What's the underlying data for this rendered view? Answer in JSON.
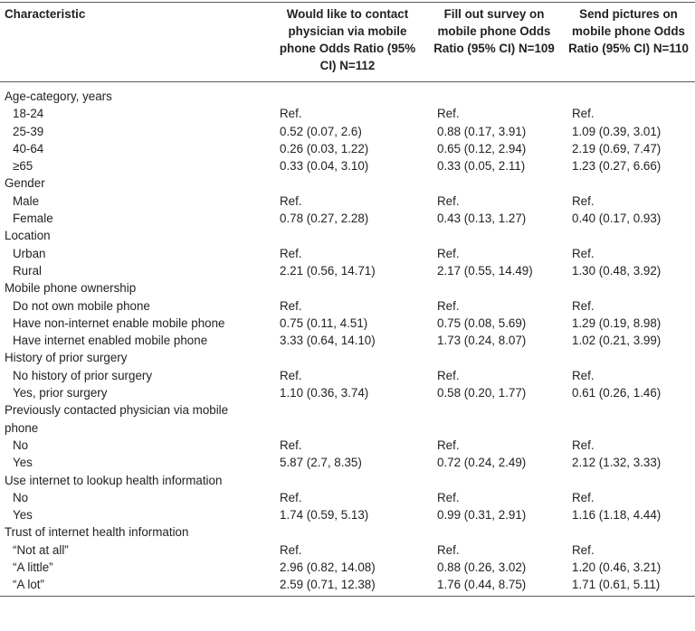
{
  "table": {
    "headers": [
      "Characteristic",
      "Would like to contact physician via mobile phone Odds Ratio (95% CI) N=112",
      "Fill out survey on mobile phone Odds Ratio (95% CI) N=109",
      "Send pictures on mobile phone Odds Ratio (95% CI) N=110"
    ],
    "rows": [
      {
        "type": "category",
        "label": "Age-category, years",
        "v1": "",
        "v2": "",
        "v3": ""
      },
      {
        "type": "item",
        "label": "18-24",
        "v1": "Ref.",
        "v2": "Ref.",
        "v3": "Ref."
      },
      {
        "type": "item",
        "label": " 25-39",
        "v1": "0.52 (0.07, 2.6)",
        "v2": "0.88 (0.17, 3.91)",
        "v3": "1.09 (0.39, 3.01)"
      },
      {
        "type": "item",
        "label": "40-64",
        "v1": "0.26 (0.03, 1.22)",
        "v2": "0.65 (0.12, 2.94)",
        "v3": "2.19 (0.69, 7.47)"
      },
      {
        "type": "item",
        "label": "≥65",
        "v1": "0.33 (0.04, 3.10)",
        "v2": "0.33 (0.05, 2.11)",
        "v3": "1.23 (0.27, 6.66)"
      },
      {
        "type": "category",
        "label": "Gender",
        "v1": "",
        "v2": "",
        "v3": ""
      },
      {
        "type": "item",
        "label": "Male",
        "v1": "Ref.",
        "v2": "Ref.",
        "v3": "Ref."
      },
      {
        "type": "item",
        "label": "Female",
        "v1": "0.78 (0.27, 2.28)",
        "v2": "0.43 (0.13, 1.27)",
        "v3": "0.40 (0.17, 0.93)"
      },
      {
        "type": "category",
        "label": "Location",
        "v1": "",
        "v2": "",
        "v3": ""
      },
      {
        "type": "item",
        "label": "Urban",
        "v1": "Ref.",
        "v2": "Ref.",
        "v3": "Ref."
      },
      {
        "type": "item",
        "label": "Rural",
        "v1": "2.21 (0.56, 14.71)",
        "v2": "2.17 (0.55, 14.49)",
        "v3": "1.30 (0.48, 3.92)"
      },
      {
        "type": "category",
        "label": "Mobile phone ownership",
        "v1": "",
        "v2": "",
        "v3": ""
      },
      {
        "type": "item",
        "label": "Do not own mobile phone",
        "v1": "Ref.",
        "v2": "Ref.",
        "v3": "Ref."
      },
      {
        "type": "item",
        "label": "Have non-internet enable mobile phone",
        "v1": "0.75 (0.11, 4.51)",
        "v2": "0.75 (0.08, 5.69)",
        "v3": "1.29 (0.19, 8.98)"
      },
      {
        "type": "item",
        "label": "Have internet enabled mobile phone",
        "v1": "3.33 (0.64, 14.10)",
        "v2": "1.73 (0.24, 8.07)",
        "v3": "1.02 (0.21, 3.99)"
      },
      {
        "type": "category",
        "label": "History of prior surgery",
        "v1": "",
        "v2": "",
        "v3": ""
      },
      {
        "type": "item",
        "label": "No history of prior surgery",
        "v1": "Ref.",
        "v2": "Ref.",
        "v3": "Ref."
      },
      {
        "type": "item",
        "label": "Yes, prior surgery",
        "v1": "1.10 (0.36, 3.74)",
        "v2": "0.58 (0.20, 1.77)",
        "v3": "0.61 (0.26, 1.46)"
      },
      {
        "type": "category",
        "label": "Previously contacted physician via mobile phone",
        "v1": "",
        "v2": "",
        "v3": ""
      },
      {
        "type": "item",
        "label": "No",
        "v1": "Ref.",
        "v2": "Ref.",
        "v3": "Ref."
      },
      {
        "type": "item",
        "label": "Yes",
        "v1": "5.87 (2.7, 8.35)",
        "v2": "0.72 (0.24, 2.49)",
        "v3": "2.12 (1.32, 3.33)"
      },
      {
        "type": "category",
        "label": "Use internet to lookup health information",
        "v1": "",
        "v2": "",
        "v3": ""
      },
      {
        "type": "item",
        "label": "No",
        "v1": "Ref.",
        "v2": "Ref.",
        "v3": "Ref."
      },
      {
        "type": "item",
        "label": "Yes",
        "v1": "1.74 (0.59, 5.13)",
        "v2": "0.99 (0.31, 2.91)",
        "v3": "1.16 (1.18, 4.44)"
      },
      {
        "type": "category",
        "label": "Trust of internet health information",
        "v1": "",
        "v2": "",
        "v3": ""
      },
      {
        "type": "item",
        "label": "“Not at all”",
        "v1": "Ref.",
        "v2": "Ref.",
        "v3": "Ref."
      },
      {
        "type": "item",
        "label": "“A little”",
        "v1": "2.96 (0.82, 14.08)",
        "v2": "0.88 (0.26, 3.02)",
        "v3": "1.20 (0.46, 3.21)"
      },
      {
        "type": "item",
        "label": "“A lot”",
        "v1": "2.59 (0.71, 12.38)",
        "v2": "1.76 (0.44, 8.75)",
        "v3": "1.71 (0.61, 5.11)"
      }
    ]
  }
}
